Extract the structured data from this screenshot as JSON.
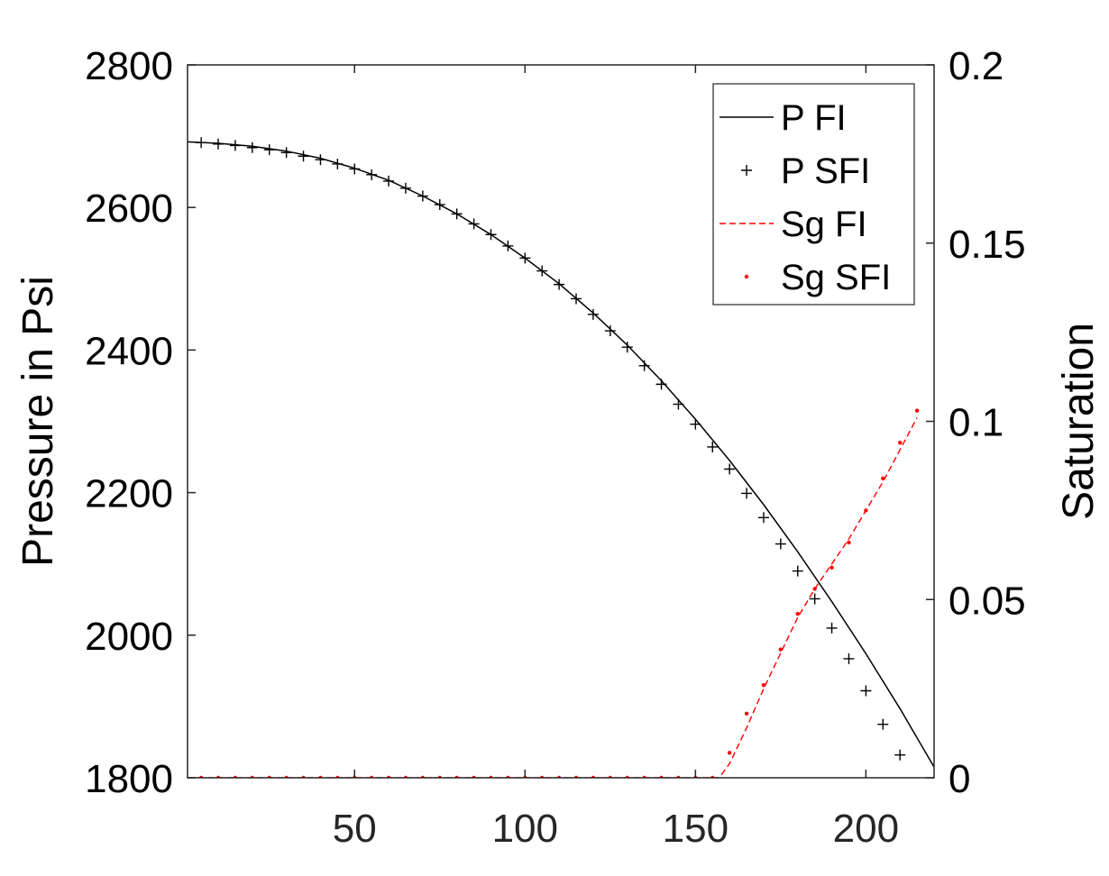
{
  "chart_data": {
    "type": "line",
    "xlabel": "",
    "ylabel_left": "Pressure in Psi",
    "ylabel_right": "Saturation",
    "xlim": [
      1,
      220
    ],
    "ylim_left": [
      1800,
      2800
    ],
    "ylim_right": [
      0,
      0.2
    ],
    "xticks": [
      50,
      100,
      150,
      200
    ],
    "yticks_left": [
      1800,
      2000,
      2200,
      2400,
      2600,
      2800
    ],
    "yticks_right": [
      0,
      0.05,
      0.1,
      0.15,
      0.2
    ],
    "ytick_labels_right": [
      "0",
      "0.05",
      "0.1",
      "0.15",
      "0.2"
    ],
    "grid": false,
    "legend_position": "top-right",
    "series": [
      {
        "name": "P FI",
        "axis": "left",
        "style": "solid",
        "color": "#000000",
        "x": [
          1,
          10,
          20,
          30,
          40,
          50,
          60,
          70,
          80,
          90,
          100,
          110,
          120,
          130,
          140,
          150,
          160,
          170,
          180,
          190,
          200,
          210,
          220
        ],
        "values": [
          2692,
          2690,
          2686,
          2679,
          2669,
          2655,
          2638,
          2616,
          2591,
          2562,
          2529,
          2493,
          2452,
          2407,
          2357,
          2303,
          2245,
          2183,
          2117,
          2047,
          1974,
          1897,
          1815
        ]
      },
      {
        "name": "P SFI",
        "axis": "left",
        "style": "plus",
        "color": "#000000",
        "x": [
          5,
          10,
          15,
          20,
          25,
          30,
          35,
          40,
          45,
          50,
          55,
          60,
          65,
          70,
          75,
          80,
          85,
          90,
          95,
          100,
          105,
          110,
          115,
          120,
          125,
          130,
          135,
          140,
          145,
          150,
          155,
          160,
          165,
          170,
          175,
          180,
          185,
          190,
          195,
          200,
          205,
          210,
          215
        ],
        "values": [
          2691,
          2689,
          2687,
          2684,
          2681,
          2677,
          2672,
          2667,
          2661,
          2654,
          2646,
          2637,
          2627,
          2616,
          2604,
          2591,
          2577,
          2562,
          2546,
          2529,
          2511,
          2492,
          2472,
          2450,
          2427,
          2404,
          2378,
          2352,
          2324,
          2296,
          2264,
          2233,
          2199,
          2165,
          2128,
          2090,
          2051,
          2010,
          1967,
          1922,
          1875,
          1832,
          1785
        ]
      },
      {
        "name": "Sg FI",
        "axis": "right",
        "style": "dashed",
        "color": "#ff0000",
        "x": [
          1,
          50,
          100,
          150,
          157,
          160,
          165,
          170,
          175,
          180,
          185,
          190,
          195,
          200,
          205,
          210,
          215
        ],
        "values": [
          0,
          0,
          0,
          0,
          0,
          0.004,
          0.014,
          0.025,
          0.035,
          0.045,
          0.053,
          0.06,
          0.067,
          0.075,
          0.083,
          0.092,
          0.101
        ]
      },
      {
        "name": "Sg SFI",
        "axis": "right",
        "style": "dot",
        "color": "#ff0000",
        "x": [
          5,
          10,
          15,
          20,
          25,
          30,
          35,
          40,
          45,
          50,
          55,
          60,
          65,
          70,
          75,
          80,
          85,
          90,
          95,
          100,
          105,
          110,
          115,
          120,
          125,
          130,
          135,
          140,
          145,
          150,
          155,
          160,
          165,
          170,
          175,
          180,
          185,
          190,
          195,
          200,
          205,
          210,
          215
        ],
        "values": [
          0,
          0,
          0,
          0,
          0,
          0,
          0,
          0,
          0,
          0,
          0,
          0,
          0,
          0,
          0,
          0,
          0,
          0,
          0,
          0,
          0,
          0,
          0,
          0,
          0,
          0,
          0,
          0,
          0,
          0,
          0,
          0.007,
          0.018,
          0.026,
          0.036,
          0.046,
          0.053,
          0.059,
          0.066,
          0.075,
          0.084,
          0.094,
          0.103
        ]
      }
    ]
  }
}
